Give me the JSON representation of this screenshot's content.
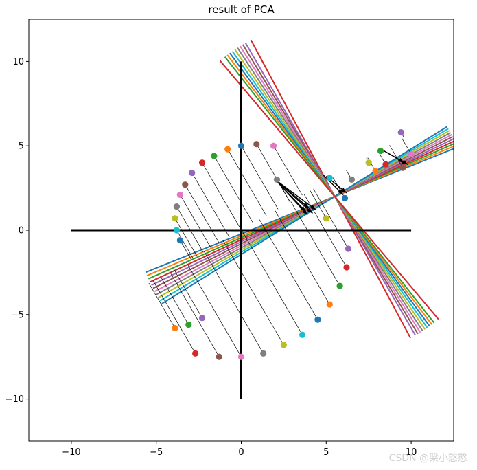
{
  "chart_data": {
    "type": "scatter",
    "title": "result of PCA",
    "xlabel": "",
    "ylabel": "",
    "xlim": [
      -12.5,
      12.5
    ],
    "ylim": [
      -12.5,
      12.5
    ],
    "xticks": [
      "−10",
      "−5",
      "0",
      "5",
      "10"
    ],
    "yticks": [
      "−10",
      "−5",
      "0",
      "5",
      "10"
    ],
    "xtick_values": [
      -10,
      -5,
      0,
      5,
      10
    ],
    "ytick_values": [
      -10,
      -5,
      0,
      5,
      10
    ],
    "grid": false,
    "axis_cross_lines": {
      "horizontal": {
        "x": [
          -10,
          10
        ],
        "y": 0
      },
      "vertical": {
        "x": 0,
        "y": [
          -10,
          10
        ]
      }
    },
    "points": [
      {
        "x": 0,
        "y": 5
      },
      {
        "x": -0.8,
        "y": 4.8
      },
      {
        "x": -1.6,
        "y": 4.4
      },
      {
        "x": -2.3,
        "y": 4.0
      },
      {
        "x": -2.9,
        "y": 3.4
      },
      {
        "x": -3.3,
        "y": 2.7
      },
      {
        "x": -3.6,
        "y": 2.1
      },
      {
        "x": -3.8,
        "y": 1.4
      },
      {
        "x": -3.9,
        "y": 0.7
      },
      {
        "x": -3.8,
        "y": 0
      },
      {
        "x": -3.6,
        "y": -0.6
      },
      {
        "x": -3.9,
        "y": -5.8
      },
      {
        "x": -3.1,
        "y": -5.6
      },
      {
        "x": -2.7,
        "y": -7.3
      },
      {
        "x": -2.3,
        "y": -5.2
      },
      {
        "x": -1.3,
        "y": -7.5
      },
      {
        "x": 0,
        "y": -7.5
      },
      {
        "x": 1.3,
        "y": -7.3
      },
      {
        "x": 2.5,
        "y": -6.8
      },
      {
        "x": 3.6,
        "y": -6.2
      },
      {
        "x": 4.5,
        "y": -5.3
      },
      {
        "x": 5.2,
        "y": -4.4
      },
      {
        "x": 5.8,
        "y": -3.3
      },
      {
        "x": 6.2,
        "y": -2.2
      },
      {
        "x": 6.3,
        "y": -1.1
      },
      {
        "x": 0.9,
        "y": 5.1
      },
      {
        "x": 1.9,
        "y": 5.0
      },
      {
        "x": 2.1,
        "y": 3.0
      },
      {
        "x": 5.0,
        "y": 0.7
      },
      {
        "x": 5.2,
        "y": 3.1
      },
      {
        "x": 6.1,
        "y": 1.9
      },
      {
        "x": 7.9,
        "y": 3.5
      },
      {
        "x": 8.2,
        "y": 4.7
      },
      {
        "x": 8.5,
        "y": 3.9
      },
      {
        "x": 9.4,
        "y": 5.8
      },
      {
        "x": 9.5,
        "y": 3.7
      },
      {
        "x": 10.0,
        "y": 4.5
      },
      {
        "x": 6.5,
        "y": 3.0
      },
      {
        "x": 7.5,
        "y": 4.0
      }
    ],
    "projection_angle_deg": 30,
    "principal_line_angles_deg": [
      22,
      23,
      24,
      25,
      26,
      27,
      28,
      29,
      30,
      31,
      32
    ],
    "secondary_line_angles_deg": [
      118,
      120,
      121,
      122,
      123,
      124,
      125,
      126,
      127,
      128,
      130
    ],
    "line_center": {
      "x": 5.5,
      "y": 2.0
    },
    "arrows": [
      {
        "from": [
          2.0,
          3.0
        ],
        "to": [
          4.2,
          1.0
        ]
      },
      {
        "from": [
          2.0,
          3.0
        ],
        "to": [
          4.0,
          1.3
        ]
      },
      {
        "from": [
          2.0,
          3.0
        ],
        "to": [
          3.8,
          1.1
        ]
      },
      {
        "from": [
          2.0,
          3.0
        ],
        "to": [
          4.4,
          1.2
        ]
      },
      {
        "from": [
          2.0,
          3.0
        ],
        "to": [
          3.9,
          0.9
        ]
      },
      {
        "from": [
          8.4,
          4.7
        ],
        "to": [
          9.6,
          4.0
        ]
      },
      {
        "from": [
          8.4,
          4.7
        ],
        "to": [
          9.8,
          3.9
        ]
      },
      {
        "from": [
          4.8,
          3.3
        ],
        "to": [
          6.0,
          2.1
        ]
      },
      {
        "from": [
          5.0,
          3.2
        ],
        "to": [
          6.2,
          2.2
        ]
      }
    ]
  },
  "watermark": "CSDN @梁小憨憨"
}
